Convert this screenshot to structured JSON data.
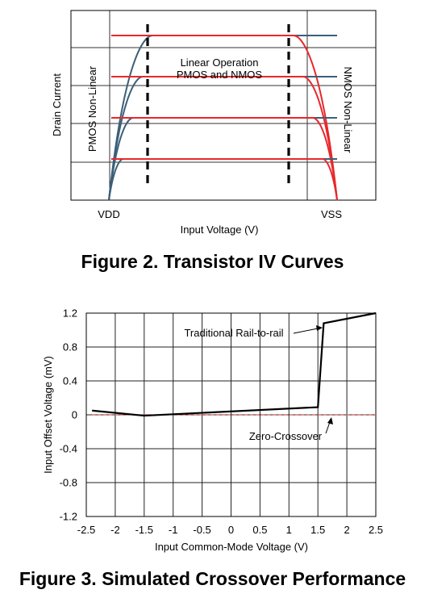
{
  "figure2": {
    "caption": "Figure 2. Transistor IV Curves",
    "xlabel": "Input Voltage (V)",
    "ylabel": "Drain Current",
    "x_left_label": "VDD",
    "x_right_label": "VSS",
    "region_left_label": "PMOS Non-Linear",
    "region_right_label": "NMOS Non-Linear",
    "region_center_line1": "Linear Operation",
    "region_center_line2": "PMOS and NMOS",
    "colors": {
      "pmos": "#3c5f78",
      "nmos": "#e8282b"
    }
  },
  "figure3": {
    "caption": "Figure 3. Simulated Crossover Performance",
    "annotation_traditional": "Traditional Rail-to-rail",
    "annotation_zero": "Zero-Crossover"
  },
  "chart_data": [
    {
      "type": "line",
      "title": "Figure 2. Transistor IV Curves",
      "xlabel": "Input Voltage (V)",
      "ylabel": "Drain Current",
      "x_tick_labels": [
        "VDD",
        "VSS"
      ],
      "series": [
        {
          "name": "PMOS",
          "color": "#3c5f78",
          "saturation_levels": [
            4,
            3,
            2,
            1
          ]
        },
        {
          "name": "NMOS",
          "color": "#e8282b",
          "saturation_levels": [
            4,
            3,
            2,
            1
          ]
        }
      ],
      "annotations": [
        "Linear Operation",
        "PMOS and NMOS",
        "PMOS Non-Linear",
        "NMOS Non-Linear"
      ],
      "grid": true
    },
    {
      "type": "line",
      "title": "Figure 3. Simulated Crossover Performance",
      "xlabel": "Input Common-Mode Voltage (V)",
      "ylabel": "Input Offset Voltage (mV)",
      "xlim": [
        -2.5,
        2.5
      ],
      "ylim": [
        -1.2,
        1.2
      ],
      "x_ticks": [
        -2.5,
        -2,
        -1.5,
        -1,
        -0.5,
        0,
        0.5,
        1,
        1.5,
        2,
        2.5
      ],
      "x_tick_labels": [
        "-2.5",
        "-2",
        "-1.5",
        "-1",
        "-0.5",
        "0",
        "0.5",
        "1",
        "1.5",
        "2",
        "2.5"
      ],
      "y_ticks": [
        -1.2,
        -0.8,
        -0.4,
        0,
        0.4,
        0.8,
        1.2
      ],
      "y_tick_labels": [
        "-1.2",
        "-0.8",
        "-0.4",
        "0",
        "0.4",
        "0.8",
        "1.2"
      ],
      "grid": true,
      "series": [
        {
          "name": "Traditional Rail-to-rail",
          "color": "#000000",
          "x": [
            -2.4,
            -1.5,
            1.5,
            1.6,
            2.5
          ],
          "y": [
            0.05,
            -0.01,
            0.09,
            1.08,
            1.2
          ]
        },
        {
          "name": "Zero-Crossover",
          "color": "#d9534f",
          "x": [
            -2.4,
            2.5
          ],
          "y": [
            0.0,
            0.0
          ]
        }
      ]
    }
  ]
}
